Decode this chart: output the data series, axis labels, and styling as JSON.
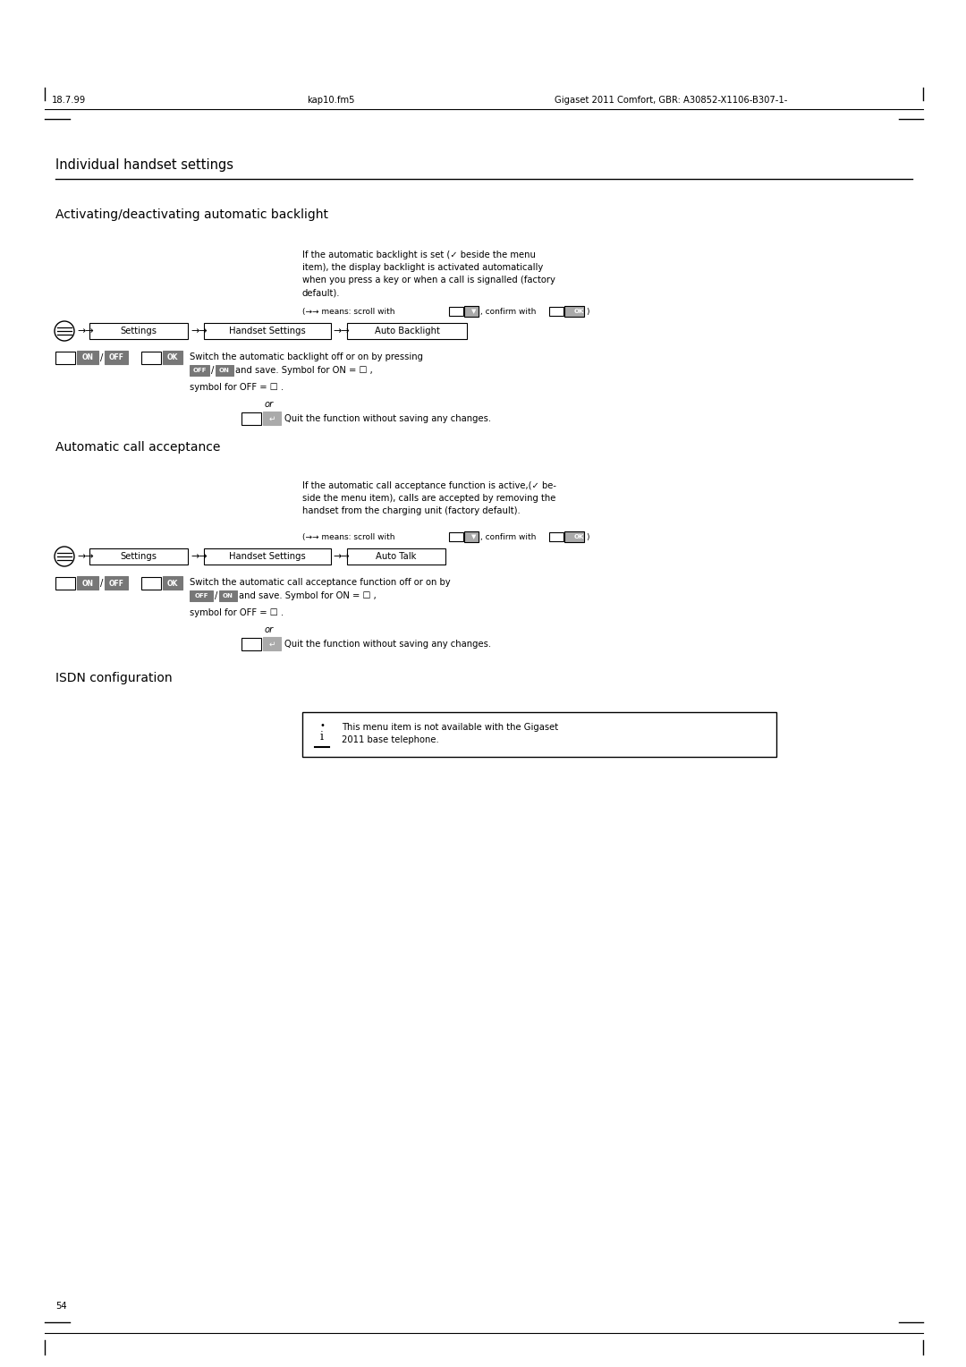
{
  "page_width": 10.8,
  "page_height": 15.28,
  "bg_color": "#ffffff",
  "header_left": "18.7.99",
  "header_center": "kap10.fm5",
  "header_right": "Gigaset 2011 Comfort, GBR: A30852-X1106-B307-1-",
  "footer_page": "54",
  "section_title": "Individual handset settings",
  "sub1_title": "Activating/deactivating automatic backlight",
  "sub1_desc_lines": [
    "If the automatic backlight is set (✓ beside the menu",
    "item), the display backlight is activated automatically",
    "when you press a key or when a call is signalled (factory",
    "default)."
  ],
  "action1_line1": "Switch the automatic backlight off or on by pressing",
  "action1_line2": "OFF / ON and save. Symbol for ON = ☐ ,",
  "action1_line3": "symbol for OFF = ☐ .",
  "or_text": "or",
  "quit_text": "Quit the function without saving any changes.",
  "sub2_title": "Automatic call acceptance",
  "sub2_desc_lines": [
    "If the automatic call acceptance function is active,(✓ be-",
    "side the menu item), calls are accepted by removing the",
    "handset from the charging unit (factory default)."
  ],
  "action2_line1": "Switch the automatic call acceptance function off or on by",
  "action2_line2": "pressing OFF / ON and save. Symbol for ON = ☐ ,",
  "action2_line3": "symbol for OFF = ☐ .",
  "sub3_title": "ISDN configuration",
  "note_line1": "This menu item is not available with the Gigaset",
  "note_line2": "2011 base telephone.",
  "text_color": "#000000",
  "gray_btn": "#777777",
  "light_gray_btn": "#aaaaaa"
}
